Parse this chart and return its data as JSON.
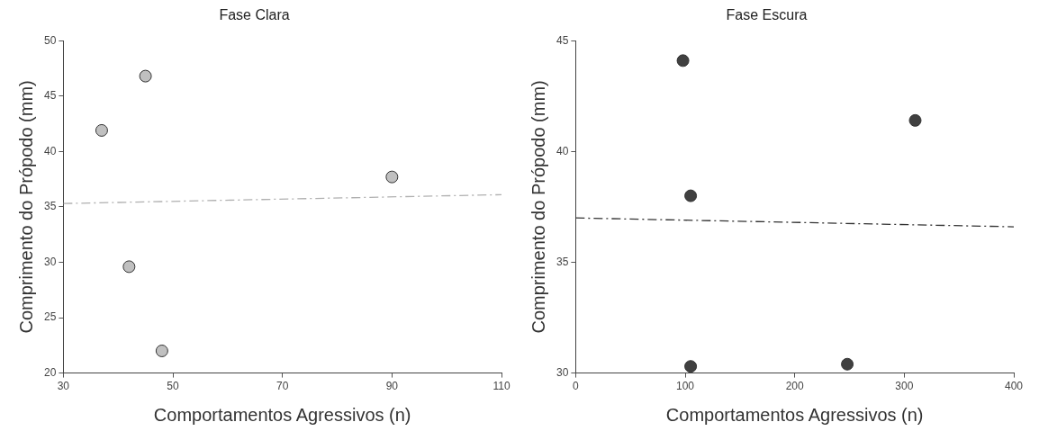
{
  "chart_data": [
    {
      "type": "scatter",
      "title": "Fase Clara",
      "xlabel": "Comportamentos Agressivos (n)",
      "ylabel": "Comprimento do Própodo (mm)",
      "xlim": [
        30,
        110
      ],
      "xticks": [
        30,
        50,
        70,
        90,
        110
      ],
      "ylim": [
        20,
        50
      ],
      "yticks": [
        20,
        25,
        30,
        35,
        40,
        45,
        50
      ],
      "grid": false,
      "legend": false,
      "series": [
        {
          "color": "#c0c0c0",
          "marker": "circle",
          "x": [
            37,
            45,
            42,
            48,
            90
          ],
          "values": [
            41.9,
            46.8,
            29.6,
            22,
            37.7
          ]
        },
        {
          "type": "line",
          "color": "#b0b0b0",
          "marker": "none",
          "line_style": "dashed",
          "x": [
            30,
            110
          ],
          "values": [
            35.3,
            36.1
          ]
        }
      ]
    },
    {
      "type": "scatter",
      "title": "Fase Escura",
      "xlabel": "Comportamentos Agressivos (n)",
      "ylabel": "Comprimento do Própodo (mm)",
      "xlim": [
        0,
        400
      ],
      "xticks": [
        0,
        100,
        200,
        300,
        400
      ],
      "ylim": [
        30,
        45
      ],
      "yticks": [
        30,
        35,
        40,
        45
      ],
      "grid": false,
      "legend": false,
      "series": [
        {
          "color": "#404040",
          "marker": "circle",
          "x": [
            98,
            105,
            105,
            248,
            310
          ],
          "values": [
            44.1,
            38,
            30.3,
            30.4,
            41.4
          ]
        },
        {
          "type": "line",
          "color": "#333333",
          "marker": "none",
          "line_style": "dashed",
          "x": [
            0,
            400
          ],
          "values": [
            37,
            36.6
          ]
        }
      ]
    }
  ]
}
